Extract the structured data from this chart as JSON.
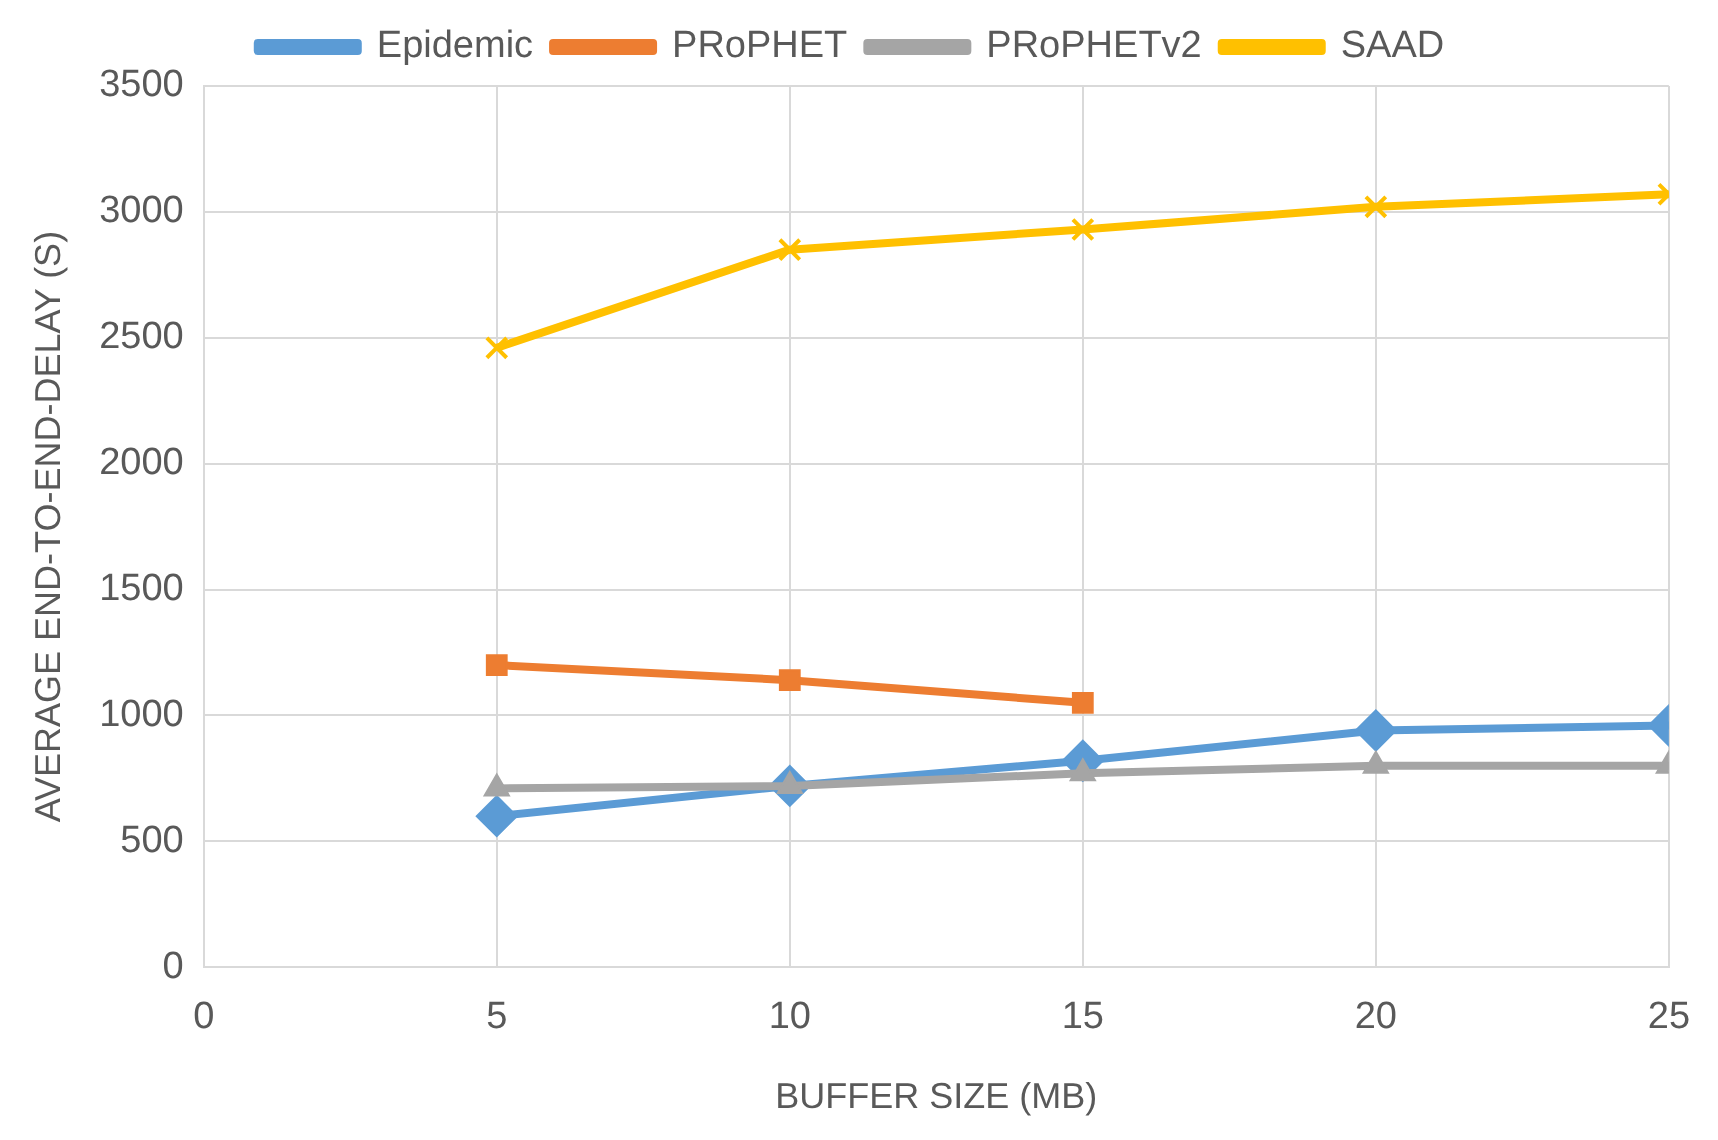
{
  "chart_data": {
    "type": "line",
    "xlabel": "BUFFER SIZE (MB)",
    "ylabel": "AVERAGE END-TO-END-DELAY (S)",
    "x": [
      5,
      10,
      15,
      20,
      25
    ],
    "series": [
      {
        "name": "Epidemic",
        "color": "#5b9bd5",
        "marker": "diamond",
        "values": [
          600,
          720,
          820,
          940,
          960
        ]
      },
      {
        "name": "PRoPHET",
        "color": "#ed7d31",
        "marker": "square",
        "values": [
          1200,
          1140,
          1050,
          null,
          null
        ]
      },
      {
        "name": "PRoPHETv2",
        "color": "#a5a5a5",
        "marker": "triangle",
        "values": [
          710,
          720,
          770,
          800,
          800
        ]
      },
      {
        "name": "SAAD",
        "color": "#ffc000",
        "marker": "cross",
        "values": [
          2460,
          2850,
          2930,
          3020,
          3070
        ]
      }
    ],
    "xlim": [
      0,
      25
    ],
    "xticks": [
      0,
      5,
      10,
      15,
      20,
      25
    ],
    "ylim": [
      0,
      3500
    ],
    "yticks": [
      0,
      500,
      1000,
      1500,
      2000,
      2500,
      3000,
      3500
    ],
    "grid": true,
    "legend": "top"
  }
}
